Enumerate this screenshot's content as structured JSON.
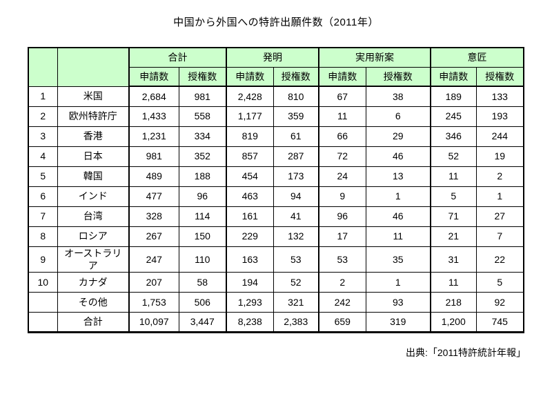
{
  "page": {
    "title": "中国から外国への特許出願件数（2011年）",
    "source": "出典:「2011特許統計年報」"
  },
  "colors": {
    "header_bg": "#ccffcc",
    "border": "#000000",
    "text": "#000000",
    "page_bg": "#ffffff"
  },
  "chart_data": {
    "type": "table",
    "title": "中国から外国への特許出願件数（2011年）",
    "source": "出典:「2011特許統計年報」",
    "column_groups": [
      {
        "label": "合計"
      },
      {
        "label": "発明"
      },
      {
        "label": "実用新案"
      },
      {
        "label": "意匠"
      }
    ],
    "sub_headers": [
      "申請数",
      "授権数",
      "申請数",
      "授権数",
      "申請数",
      "授権数",
      "申請数",
      "授権数"
    ],
    "rows": [
      {
        "rank": "1",
        "name": "米国",
        "values": [
          "2,684",
          "981",
          "2,428",
          "810",
          "67",
          "38",
          "189",
          "133"
        ]
      },
      {
        "rank": "2",
        "name": "欧州特許庁",
        "values": [
          "1,433",
          "558",
          "1,177",
          "359",
          "11",
          "6",
          "245",
          "193"
        ]
      },
      {
        "rank": "3",
        "name": "香港",
        "values": [
          "1,231",
          "334",
          "819",
          "61",
          "66",
          "29",
          "346",
          "244"
        ]
      },
      {
        "rank": "4",
        "name": "日本",
        "values": [
          "981",
          "352",
          "857",
          "287",
          "72",
          "46",
          "52",
          "19"
        ]
      },
      {
        "rank": "5",
        "name": "韓国",
        "values": [
          "489",
          "188",
          "454",
          "173",
          "24",
          "13",
          "11",
          "2"
        ]
      },
      {
        "rank": "6",
        "name": "インド",
        "values": [
          "477",
          "96",
          "463",
          "94",
          "9",
          "1",
          "5",
          "1"
        ]
      },
      {
        "rank": "7",
        "name": "台湾",
        "values": [
          "328",
          "114",
          "161",
          "41",
          "96",
          "46",
          "71",
          "27"
        ]
      },
      {
        "rank": "8",
        "name": "ロシア",
        "values": [
          "267",
          "150",
          "229",
          "132",
          "17",
          "11",
          "21",
          "7"
        ]
      },
      {
        "rank": "9",
        "name": "オーストラリア",
        "values": [
          "247",
          "110",
          "163",
          "53",
          "53",
          "35",
          "31",
          "22"
        ]
      },
      {
        "rank": "10",
        "name": "カナダ",
        "values": [
          "207",
          "58",
          "194",
          "52",
          "2",
          "1",
          "11",
          "5"
        ]
      },
      {
        "rank": "",
        "name": "その他",
        "values": [
          "1,753",
          "506",
          "1,293",
          "321",
          "242",
          "93",
          "218",
          "92"
        ]
      },
      {
        "rank": "",
        "name": "合計",
        "values": [
          "10,097",
          "3,447",
          "8,238",
          "2,383",
          "659",
          "319",
          "1,200",
          "745"
        ]
      }
    ]
  }
}
